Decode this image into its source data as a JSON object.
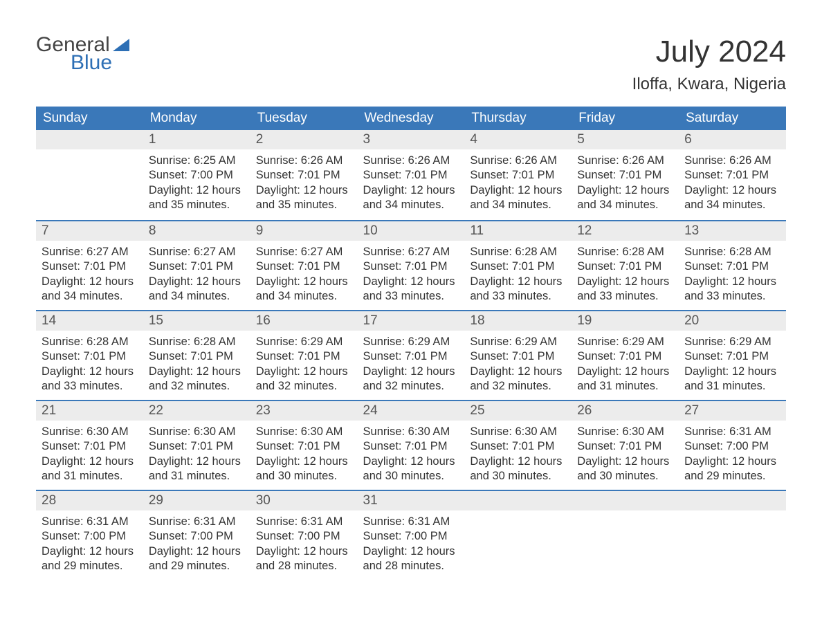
{
  "logo": {
    "line1": "General",
    "line2": "Blue"
  },
  "title": "July 2024",
  "location": "Iloffa, Kwara, Nigeria",
  "colors": {
    "header_bg": "#3a78b9",
    "header_text": "#ffffff",
    "daynum_bg": "#ececec",
    "daynum_border": "#3a78b9",
    "text": "#333333",
    "logo_blue": "#2d6fb5"
  },
  "columns": [
    "Sunday",
    "Monday",
    "Tuesday",
    "Wednesday",
    "Thursday",
    "Friday",
    "Saturday"
  ],
  "weeks": [
    [
      null,
      {
        "n": "1",
        "sr": "Sunrise: 6:25 AM",
        "ss": "Sunset: 7:00 PM",
        "dl": "Daylight: 12 hours and 35 minutes."
      },
      {
        "n": "2",
        "sr": "Sunrise: 6:26 AM",
        "ss": "Sunset: 7:01 PM",
        "dl": "Daylight: 12 hours and 35 minutes."
      },
      {
        "n": "3",
        "sr": "Sunrise: 6:26 AM",
        "ss": "Sunset: 7:01 PM",
        "dl": "Daylight: 12 hours and 34 minutes."
      },
      {
        "n": "4",
        "sr": "Sunrise: 6:26 AM",
        "ss": "Sunset: 7:01 PM",
        "dl": "Daylight: 12 hours and 34 minutes."
      },
      {
        "n": "5",
        "sr": "Sunrise: 6:26 AM",
        "ss": "Sunset: 7:01 PM",
        "dl": "Daylight: 12 hours and 34 minutes."
      },
      {
        "n": "6",
        "sr": "Sunrise: 6:26 AM",
        "ss": "Sunset: 7:01 PM",
        "dl": "Daylight: 12 hours and 34 minutes."
      }
    ],
    [
      {
        "n": "7",
        "sr": "Sunrise: 6:27 AM",
        "ss": "Sunset: 7:01 PM",
        "dl": "Daylight: 12 hours and 34 minutes."
      },
      {
        "n": "8",
        "sr": "Sunrise: 6:27 AM",
        "ss": "Sunset: 7:01 PM",
        "dl": "Daylight: 12 hours and 34 minutes."
      },
      {
        "n": "9",
        "sr": "Sunrise: 6:27 AM",
        "ss": "Sunset: 7:01 PM",
        "dl": "Daylight: 12 hours and 34 minutes."
      },
      {
        "n": "10",
        "sr": "Sunrise: 6:27 AM",
        "ss": "Sunset: 7:01 PM",
        "dl": "Daylight: 12 hours and 33 minutes."
      },
      {
        "n": "11",
        "sr": "Sunrise: 6:28 AM",
        "ss": "Sunset: 7:01 PM",
        "dl": "Daylight: 12 hours and 33 minutes."
      },
      {
        "n": "12",
        "sr": "Sunrise: 6:28 AM",
        "ss": "Sunset: 7:01 PM",
        "dl": "Daylight: 12 hours and 33 minutes."
      },
      {
        "n": "13",
        "sr": "Sunrise: 6:28 AM",
        "ss": "Sunset: 7:01 PM",
        "dl": "Daylight: 12 hours and 33 minutes."
      }
    ],
    [
      {
        "n": "14",
        "sr": "Sunrise: 6:28 AM",
        "ss": "Sunset: 7:01 PM",
        "dl": "Daylight: 12 hours and 33 minutes."
      },
      {
        "n": "15",
        "sr": "Sunrise: 6:28 AM",
        "ss": "Sunset: 7:01 PM",
        "dl": "Daylight: 12 hours and 32 minutes."
      },
      {
        "n": "16",
        "sr": "Sunrise: 6:29 AM",
        "ss": "Sunset: 7:01 PM",
        "dl": "Daylight: 12 hours and 32 minutes."
      },
      {
        "n": "17",
        "sr": "Sunrise: 6:29 AM",
        "ss": "Sunset: 7:01 PM",
        "dl": "Daylight: 12 hours and 32 minutes."
      },
      {
        "n": "18",
        "sr": "Sunrise: 6:29 AM",
        "ss": "Sunset: 7:01 PM",
        "dl": "Daylight: 12 hours and 32 minutes."
      },
      {
        "n": "19",
        "sr": "Sunrise: 6:29 AM",
        "ss": "Sunset: 7:01 PM",
        "dl": "Daylight: 12 hours and 31 minutes."
      },
      {
        "n": "20",
        "sr": "Sunrise: 6:29 AM",
        "ss": "Sunset: 7:01 PM",
        "dl": "Daylight: 12 hours and 31 minutes."
      }
    ],
    [
      {
        "n": "21",
        "sr": "Sunrise: 6:30 AM",
        "ss": "Sunset: 7:01 PM",
        "dl": "Daylight: 12 hours and 31 minutes."
      },
      {
        "n": "22",
        "sr": "Sunrise: 6:30 AM",
        "ss": "Sunset: 7:01 PM",
        "dl": "Daylight: 12 hours and 31 minutes."
      },
      {
        "n": "23",
        "sr": "Sunrise: 6:30 AM",
        "ss": "Sunset: 7:01 PM",
        "dl": "Daylight: 12 hours and 30 minutes."
      },
      {
        "n": "24",
        "sr": "Sunrise: 6:30 AM",
        "ss": "Sunset: 7:01 PM",
        "dl": "Daylight: 12 hours and 30 minutes."
      },
      {
        "n": "25",
        "sr": "Sunrise: 6:30 AM",
        "ss": "Sunset: 7:01 PM",
        "dl": "Daylight: 12 hours and 30 minutes."
      },
      {
        "n": "26",
        "sr": "Sunrise: 6:30 AM",
        "ss": "Sunset: 7:01 PM",
        "dl": "Daylight: 12 hours and 30 minutes."
      },
      {
        "n": "27",
        "sr": "Sunrise: 6:31 AM",
        "ss": "Sunset: 7:00 PM",
        "dl": "Daylight: 12 hours and 29 minutes."
      }
    ],
    [
      {
        "n": "28",
        "sr": "Sunrise: 6:31 AM",
        "ss": "Sunset: 7:00 PM",
        "dl": "Daylight: 12 hours and 29 minutes."
      },
      {
        "n": "29",
        "sr": "Sunrise: 6:31 AM",
        "ss": "Sunset: 7:00 PM",
        "dl": "Daylight: 12 hours and 29 minutes."
      },
      {
        "n": "30",
        "sr": "Sunrise: 6:31 AM",
        "ss": "Sunset: 7:00 PM",
        "dl": "Daylight: 12 hours and 28 minutes."
      },
      {
        "n": "31",
        "sr": "Sunrise: 6:31 AM",
        "ss": "Sunset: 7:00 PM",
        "dl": "Daylight: 12 hours and 28 minutes."
      },
      null,
      null,
      null
    ]
  ]
}
